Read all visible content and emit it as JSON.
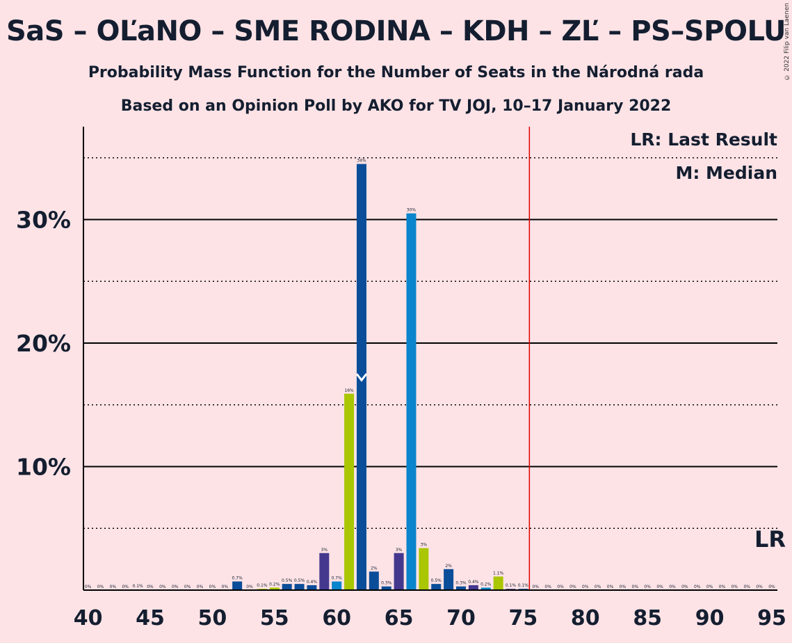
{
  "title": "SaS – OĽaNO – SME RODINA – KDH – ZĽ – PS–SPOLU",
  "subtitle1": "Probability Mass Function for the Number of Seats in the Národná rada",
  "subtitle2": "Based on an Opinion Poll by AKO for TV JOJ, 10–17 January 2022",
  "copyright": "© 2022 Filip van Laenen",
  "legend": {
    "lr": "LR: Last Result",
    "m": "M: Median",
    "lr_marker": "LR"
  },
  "colors": {
    "background": "#fde3e6",
    "lastResultLine": "#e00000",
    "palette": [
      "#0a4d99",
      "#0a84cc",
      "#a9c600",
      "#44388e"
    ]
  },
  "chart_data": {
    "type": "bar",
    "xlim": [
      40,
      95
    ],
    "ylim": [
      0,
      37
    ],
    "yticks": [
      10,
      20,
      30
    ],
    "ytick_labels": [
      "10%",
      "20%",
      "30%"
    ],
    "xticks": [
      40,
      45,
      50,
      55,
      60,
      65,
      70,
      75,
      80,
      85,
      90,
      95
    ],
    "xtick_labels": [
      "40",
      "45",
      "50",
      "55",
      "60",
      "65",
      "70",
      "75",
      "80",
      "85",
      "90",
      "95"
    ],
    "last_result": 76,
    "median": 62,
    "bars": [
      {
        "x": 40,
        "value": 0,
        "label": "0%",
        "color": "#0a4d99"
      },
      {
        "x": 41,
        "value": 0,
        "label": "0%",
        "color": "#0a84cc"
      },
      {
        "x": 42,
        "value": 0,
        "label": "0%",
        "color": "#a9c600"
      },
      {
        "x": 43,
        "value": 0,
        "label": "0%",
        "color": "#44388e"
      },
      {
        "x": 44,
        "value": 0.05,
        "label": "0.1%",
        "color": "#0a4d99"
      },
      {
        "x": 45,
        "value": 0,
        "label": "0%",
        "color": "#0a84cc"
      },
      {
        "x": 46,
        "value": 0,
        "label": "0%",
        "color": "#a9c600"
      },
      {
        "x": 47,
        "value": 0,
        "label": "0%",
        "color": "#44388e"
      },
      {
        "x": 48,
        "value": 0,
        "label": "0%",
        "color": "#0a4d99"
      },
      {
        "x": 49,
        "value": 0,
        "label": "0%",
        "color": "#0a84cc"
      },
      {
        "x": 50,
        "value": 0,
        "label": "0%",
        "color": "#a9c600"
      },
      {
        "x": 51,
        "value": 0,
        "label": "0%",
        "color": "#44388e"
      },
      {
        "x": 52,
        "value": 0.7,
        "label": "0.7%",
        "color": "#0a4d99"
      },
      {
        "x": 53,
        "value": 0,
        "label": "0%",
        "color": "#0a84cc"
      },
      {
        "x": 54,
        "value": 0.1,
        "label": "0.1%",
        "color": "#a9c600"
      },
      {
        "x": 55,
        "value": 0.2,
        "label": "0.2%",
        "color": "#a9c600"
      },
      {
        "x": 56,
        "value": 0.5,
        "label": "0.5%",
        "color": "#0a4d99"
      },
      {
        "x": 57,
        "value": 0.5,
        "label": "0.5%",
        "color": "#0a4d99"
      },
      {
        "x": 58,
        "value": 0.4,
        "label": "0.4%",
        "color": "#0a4d99"
      },
      {
        "x": 59,
        "value": 3.0,
        "label": "3%",
        "color": "#44388e"
      },
      {
        "x": 60,
        "value": 0.7,
        "label": "0.7%",
        "color": "#0a84cc"
      },
      {
        "x": 61,
        "value": 15.9,
        "label": "16%",
        "color": "#a9c600"
      },
      {
        "x": 62,
        "value": 34.5,
        "label": "34%",
        "color": "#0a4d99"
      },
      {
        "x": 63,
        "value": 1.5,
        "label": "2%",
        "color": "#0a4d99"
      },
      {
        "x": 64,
        "value": 0.3,
        "label": "0.3%",
        "color": "#0a4d99"
      },
      {
        "x": 65,
        "value": 3.0,
        "label": "3%",
        "color": "#44388e"
      },
      {
        "x": 66,
        "value": 30.5,
        "label": "30%",
        "color": "#0a84cc"
      },
      {
        "x": 67,
        "value": 3.4,
        "label": "3%",
        "color": "#a9c600"
      },
      {
        "x": 68,
        "value": 0.5,
        "label": "0.5%",
        "color": "#0a4d99"
      },
      {
        "x": 69,
        "value": 1.7,
        "label": "2%",
        "color": "#0a4d99"
      },
      {
        "x": 70,
        "value": 0.3,
        "label": "0.3%",
        "color": "#0a4d99"
      },
      {
        "x": 71,
        "value": 0.4,
        "label": "0.4%",
        "color": "#44388e"
      },
      {
        "x": 72,
        "value": 0.2,
        "label": "0.2%",
        "color": "#0a84cc"
      },
      {
        "x": 73,
        "value": 1.1,
        "label": "1.1%",
        "color": "#a9c600"
      },
      {
        "x": 74,
        "value": 0.1,
        "label": "0.1%",
        "color": "#44388e"
      },
      {
        "x": 75,
        "value": 0.1,
        "label": "0.1%",
        "color": "#0a4d99"
      },
      {
        "x": 76,
        "value": 0,
        "label": "0%",
        "color": "#0a84cc"
      },
      {
        "x": 77,
        "value": 0,
        "label": "0%",
        "color": "#a9c600"
      },
      {
        "x": 78,
        "value": 0,
        "label": "0%",
        "color": "#44388e"
      },
      {
        "x": 79,
        "value": 0,
        "label": "0%",
        "color": "#0a4d99"
      },
      {
        "x": 80,
        "value": 0,
        "label": "0%",
        "color": "#0a84cc"
      },
      {
        "x": 81,
        "value": 0,
        "label": "0%",
        "color": "#a9c600"
      },
      {
        "x": 82,
        "value": 0,
        "label": "0%",
        "color": "#44388e"
      },
      {
        "x": 83,
        "value": 0,
        "label": "0%",
        "color": "#0a4d99"
      },
      {
        "x": 84,
        "value": 0,
        "label": "0%",
        "color": "#0a84cc"
      },
      {
        "x": 85,
        "value": 0,
        "label": "0%",
        "color": "#a9c600"
      },
      {
        "x": 86,
        "value": 0,
        "label": "0%",
        "color": "#44388e"
      },
      {
        "x": 87,
        "value": 0,
        "label": "0%",
        "color": "#0a4d99"
      },
      {
        "x": 88,
        "value": 0,
        "label": "0%",
        "color": "#0a84cc"
      },
      {
        "x": 89,
        "value": 0,
        "label": "0%",
        "color": "#a9c600"
      },
      {
        "x": 90,
        "value": 0,
        "label": "0%",
        "color": "#44388e"
      },
      {
        "x": 91,
        "value": 0,
        "label": "0%",
        "color": "#0a4d99"
      },
      {
        "x": 92,
        "value": 0,
        "label": "0%",
        "color": "#0a84cc"
      },
      {
        "x": 93,
        "value": 0,
        "label": "0%",
        "color": "#a9c600"
      },
      {
        "x": 94,
        "value": 0,
        "label": "0%",
        "color": "#44388e"
      },
      {
        "x": 95,
        "value": 0,
        "label": "0%",
        "color": "#0a4d99"
      }
    ]
  }
}
